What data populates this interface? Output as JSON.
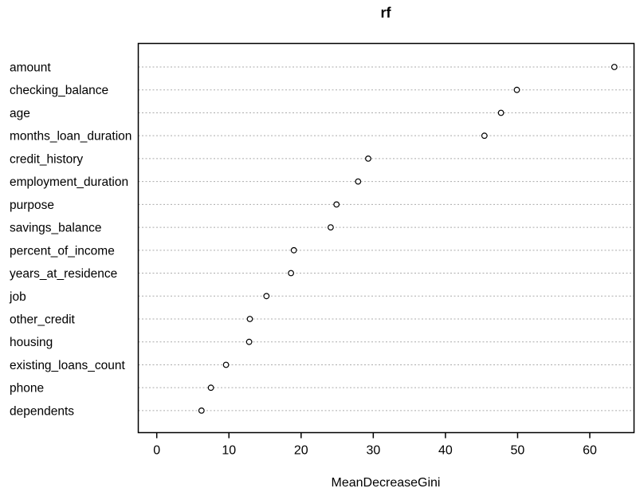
{
  "chart_data": {
    "type": "scatter",
    "variant": "dotchart-variable-importance",
    "title": "rf",
    "xlabel": "MeanDecreaseGini",
    "ylabel": "",
    "categories": [
      "amount",
      "checking_balance",
      "age",
      "months_loan_duration",
      "credit_history",
      "employment_duration",
      "purpose",
      "savings_balance",
      "percent_of_income",
      "years_at_residence",
      "job",
      "other_credit",
      "housing",
      "existing_loans_count",
      "phone",
      "dependents"
    ],
    "values": [
      63.4,
      49.9,
      47.7,
      45.4,
      29.3,
      27.9,
      24.9,
      24.1,
      19.0,
      18.6,
      15.2,
      12.9,
      12.8,
      9.6,
      7.5,
      6.2
    ],
    "xticks": [
      0,
      10,
      20,
      30,
      40,
      50,
      60
    ],
    "xlim": [
      -2.56,
      66.13
    ],
    "grid": "horizontal-dotted",
    "legend": "none",
    "colors": {
      "point_stroke": "#000000",
      "point_fill": "#ffffff",
      "grid_line": "#ababab",
      "frame": "#000000",
      "text": "#000000",
      "background": "#ffffff"
    }
  }
}
